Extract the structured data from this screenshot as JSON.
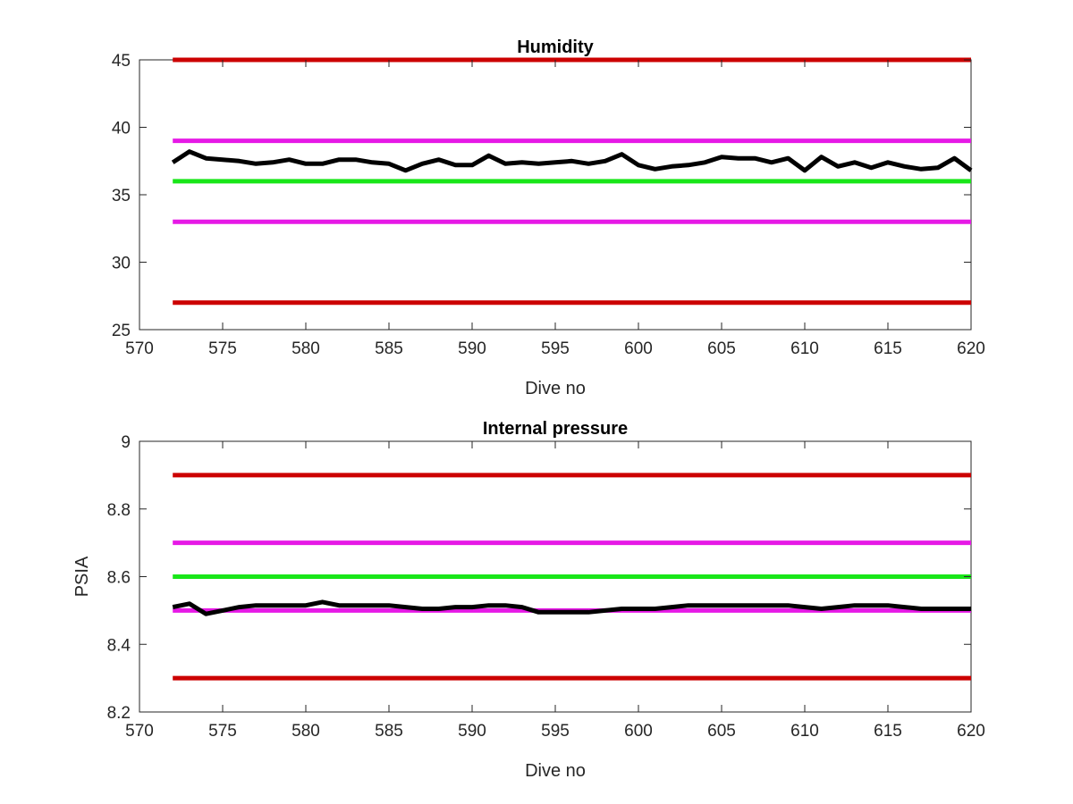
{
  "chart_data": [
    {
      "type": "line",
      "title": "Humidity",
      "xlabel": "Dive no",
      "ylabel": "",
      "xlim": [
        570,
        620
      ],
      "ylim": [
        25,
        45
      ],
      "xticks": [
        570,
        575,
        580,
        585,
        590,
        595,
        600,
        605,
        610,
        615,
        620
      ],
      "yticks": [
        25,
        30,
        35,
        40,
        45
      ],
      "xtick_labels": [
        "570",
        "575",
        "580",
        "585",
        "590",
        "595",
        "600",
        "605",
        "610",
        "615",
        "620"
      ],
      "ytick_labels": [
        "25",
        "30",
        "35",
        "40",
        "45"
      ],
      "grid": false,
      "thresholds": [
        {
          "y": 45,
          "color": "#cc0000",
          "x": [
            572,
            620
          ]
        },
        {
          "y": 39,
          "color": "#e619e6",
          "x": [
            572,
            620
          ]
        },
        {
          "y": 36,
          "color": "#19e619",
          "x": [
            572,
            620
          ]
        },
        {
          "y": 33,
          "color": "#e619e6",
          "x": [
            572,
            620
          ]
        },
        {
          "y": 27,
          "color": "#cc0000",
          "x": [
            572,
            620
          ]
        }
      ],
      "series": [
        {
          "color": "#000000",
          "x": [
            572,
            573,
            574,
            575,
            576,
            577,
            578,
            579,
            580,
            581,
            582,
            583,
            584,
            585,
            586,
            587,
            588,
            589,
            590,
            591,
            592,
            593,
            594,
            595,
            596,
            597,
            598,
            599,
            600,
            601,
            602,
            603,
            604,
            605,
            606,
            607,
            608,
            609,
            610,
            611,
            612,
            613,
            614,
            615,
            616,
            617,
            618,
            619,
            620
          ],
          "values": [
            37.4,
            38.2,
            37.7,
            37.6,
            37.5,
            37.3,
            37.4,
            37.6,
            37.3,
            37.3,
            37.6,
            37.6,
            37.4,
            37.3,
            36.8,
            37.3,
            37.6,
            37.2,
            37.2,
            37.9,
            37.3,
            37.4,
            37.3,
            37.4,
            37.5,
            37.3,
            37.5,
            38.0,
            37.2,
            36.9,
            37.1,
            37.2,
            37.4,
            37.8,
            37.7,
            37.7,
            37.4,
            37.7,
            36.8,
            37.8,
            37.1,
            37.4,
            37.0,
            37.4,
            37.1,
            36.9,
            37.0,
            37.7,
            36.8
          ]
        }
      ]
    },
    {
      "type": "line",
      "title": "Internal pressure",
      "xlabel": "Dive no",
      "ylabel": "PSIA",
      "xlim": [
        570,
        620
      ],
      "ylim": [
        8.2,
        9
      ],
      "xticks": [
        570,
        575,
        580,
        585,
        590,
        595,
        600,
        605,
        610,
        615,
        620
      ],
      "yticks": [
        8.2,
        8.4,
        8.6,
        8.8,
        9
      ],
      "xtick_labels": [
        "570",
        "575",
        "580",
        "585",
        "590",
        "595",
        "600",
        "605",
        "610",
        "615",
        "620"
      ],
      "ytick_labels": [
        "8.2",
        "8.4",
        "8.6",
        "8.8",
        "9"
      ],
      "grid": false,
      "thresholds": [
        {
          "y": 8.9,
          "color": "#cc0000",
          "x": [
            572,
            620
          ]
        },
        {
          "y": 8.7,
          "color": "#e619e6",
          "x": [
            572,
            620
          ]
        },
        {
          "y": 8.6,
          "color": "#19e619",
          "x": [
            572,
            620
          ]
        },
        {
          "y": 8.5,
          "color": "#e619e6",
          "x": [
            572,
            620
          ]
        },
        {
          "y": 8.3,
          "color": "#cc0000",
          "x": [
            572,
            620
          ]
        }
      ],
      "series": [
        {
          "color": "#000000",
          "x": [
            572,
            573,
            574,
            575,
            576,
            577,
            578,
            579,
            580,
            581,
            582,
            583,
            584,
            585,
            586,
            587,
            588,
            589,
            590,
            591,
            592,
            593,
            594,
            595,
            596,
            597,
            598,
            599,
            600,
            601,
            602,
            603,
            604,
            605,
            606,
            607,
            608,
            609,
            610,
            611,
            612,
            613,
            614,
            615,
            616,
            617,
            618,
            619,
            620
          ],
          "values": [
            8.51,
            8.52,
            8.49,
            8.5,
            8.51,
            8.515,
            8.515,
            8.515,
            8.515,
            8.525,
            8.515,
            8.515,
            8.515,
            8.515,
            8.51,
            8.505,
            8.505,
            8.51,
            8.51,
            8.515,
            8.515,
            8.51,
            8.495,
            8.495,
            8.495,
            8.495,
            8.5,
            8.505,
            8.505,
            8.505,
            8.51,
            8.515,
            8.515,
            8.515,
            8.515,
            8.515,
            8.515,
            8.515,
            8.51,
            8.505,
            8.51,
            8.515,
            8.515,
            8.515,
            8.51,
            8.505,
            8.505,
            8.505,
            8.505
          ]
        }
      ]
    }
  ]
}
